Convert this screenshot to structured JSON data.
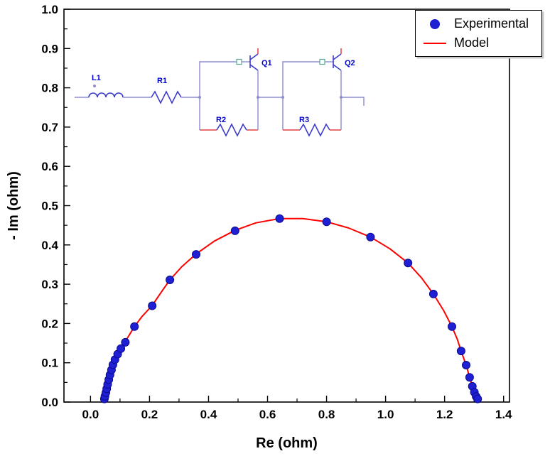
{
  "chart_data": {
    "type": "scatter",
    "title": "",
    "xlabel": "Re (ohm)",
    "ylabel": "- Im (ohm)",
    "xlim": [
      -0.09,
      1.42
    ],
    "ylim": [
      0.0,
      1.0
    ],
    "x_ticks": [
      0.0,
      0.2,
      0.4,
      0.6,
      0.8,
      1.0,
      1.2,
      1.4
    ],
    "x_minor_step": 0.1,
    "y_ticks": [
      0.0,
      0.1,
      0.2,
      0.3,
      0.4,
      0.5,
      0.6,
      0.7,
      0.8,
      0.9,
      1.0
    ],
    "y_minor_step": 0.05,
    "grid": false,
    "legend_position": "top-right",
    "series": [
      {
        "name": "Experimental",
        "type": "scatter",
        "marker": "circle",
        "color": "#1f1fd4",
        "edge_color": "#0b0b8f",
        "points": [
          [
            0.047,
            0.008
          ],
          [
            0.049,
            0.015
          ],
          [
            0.052,
            0.024
          ],
          [
            0.055,
            0.034
          ],
          [
            0.058,
            0.045
          ],
          [
            0.062,
            0.057
          ],
          [
            0.066,
            0.069
          ],
          [
            0.071,
            0.082
          ],
          [
            0.076,
            0.095
          ],
          [
            0.083,
            0.108
          ],
          [
            0.092,
            0.122
          ],
          [
            0.103,
            0.136
          ],
          [
            0.118,
            0.152
          ],
          [
            0.149,
            0.192
          ],
          [
            0.209,
            0.245
          ],
          [
            0.269,
            0.311
          ],
          [
            0.358,
            0.376
          ],
          [
            0.49,
            0.436
          ],
          [
            0.641,
            0.467
          ],
          [
            0.8,
            0.459
          ],
          [
            0.949,
            0.42
          ],
          [
            1.076,
            0.354
          ],
          [
            1.162,
            0.275
          ],
          [
            1.225,
            0.192
          ],
          [
            1.256,
            0.13
          ],
          [
            1.273,
            0.094
          ],
          [
            1.285,
            0.063
          ],
          [
            1.294,
            0.04
          ],
          [
            1.301,
            0.025
          ],
          [
            1.307,
            0.014
          ],
          [
            1.312,
            0.008
          ]
        ]
      },
      {
        "name": "Model",
        "type": "line",
        "color": "#ff0000",
        "points": [
          [
            0.045,
            0.0
          ],
          [
            0.047,
            0.01
          ],
          [
            0.05,
            0.02
          ],
          [
            0.054,
            0.032
          ],
          [
            0.058,
            0.045
          ],
          [
            0.063,
            0.058
          ],
          [
            0.068,
            0.072
          ],
          [
            0.074,
            0.086
          ],
          [
            0.081,
            0.1
          ],
          [
            0.089,
            0.115
          ],
          [
            0.098,
            0.13
          ],
          [
            0.11,
            0.146
          ],
          [
            0.125,
            0.163
          ],
          [
            0.149,
            0.192
          ],
          [
            0.175,
            0.218
          ],
          [
            0.209,
            0.246
          ],
          [
            0.24,
            0.28
          ],
          [
            0.269,
            0.311
          ],
          [
            0.31,
            0.345
          ],
          [
            0.358,
            0.377
          ],
          [
            0.42,
            0.41
          ],
          [
            0.49,
            0.437
          ],
          [
            0.56,
            0.456
          ],
          [
            0.641,
            0.467
          ],
          [
            0.72,
            0.467
          ],
          [
            0.8,
            0.459
          ],
          [
            0.875,
            0.443
          ],
          [
            0.949,
            0.42
          ],
          [
            1.015,
            0.39
          ],
          [
            1.076,
            0.354
          ],
          [
            1.122,
            0.316
          ],
          [
            1.162,
            0.275
          ],
          [
            1.196,
            0.234
          ],
          [
            1.225,
            0.192
          ],
          [
            1.243,
            0.16
          ],
          [
            1.256,
            0.13
          ],
          [
            1.273,
            0.094
          ],
          [
            1.285,
            0.063
          ],
          [
            1.294,
            0.04
          ],
          [
            1.303,
            0.02
          ],
          [
            1.31,
            0.005
          ],
          [
            1.313,
            0.0
          ]
        ]
      }
    ]
  },
  "legend": {
    "entries": [
      {
        "label": "Experimental",
        "marker": "filled-circle",
        "color": "#1f1fd4"
      },
      {
        "label": "Model",
        "marker": "line",
        "color": "#ff0000"
      }
    ]
  },
  "circuit_inset": {
    "labels": {
      "inductor": "L1",
      "resistor1": "R1",
      "resistor2": "R2",
      "resistor3": "R3",
      "cpe1": "Q1",
      "cpe2": "Q2"
    },
    "label_color": "#0000cc",
    "wire_color": "#8c8cd0",
    "component_color": "#3c3ccc",
    "lead_color": "#e04040"
  }
}
